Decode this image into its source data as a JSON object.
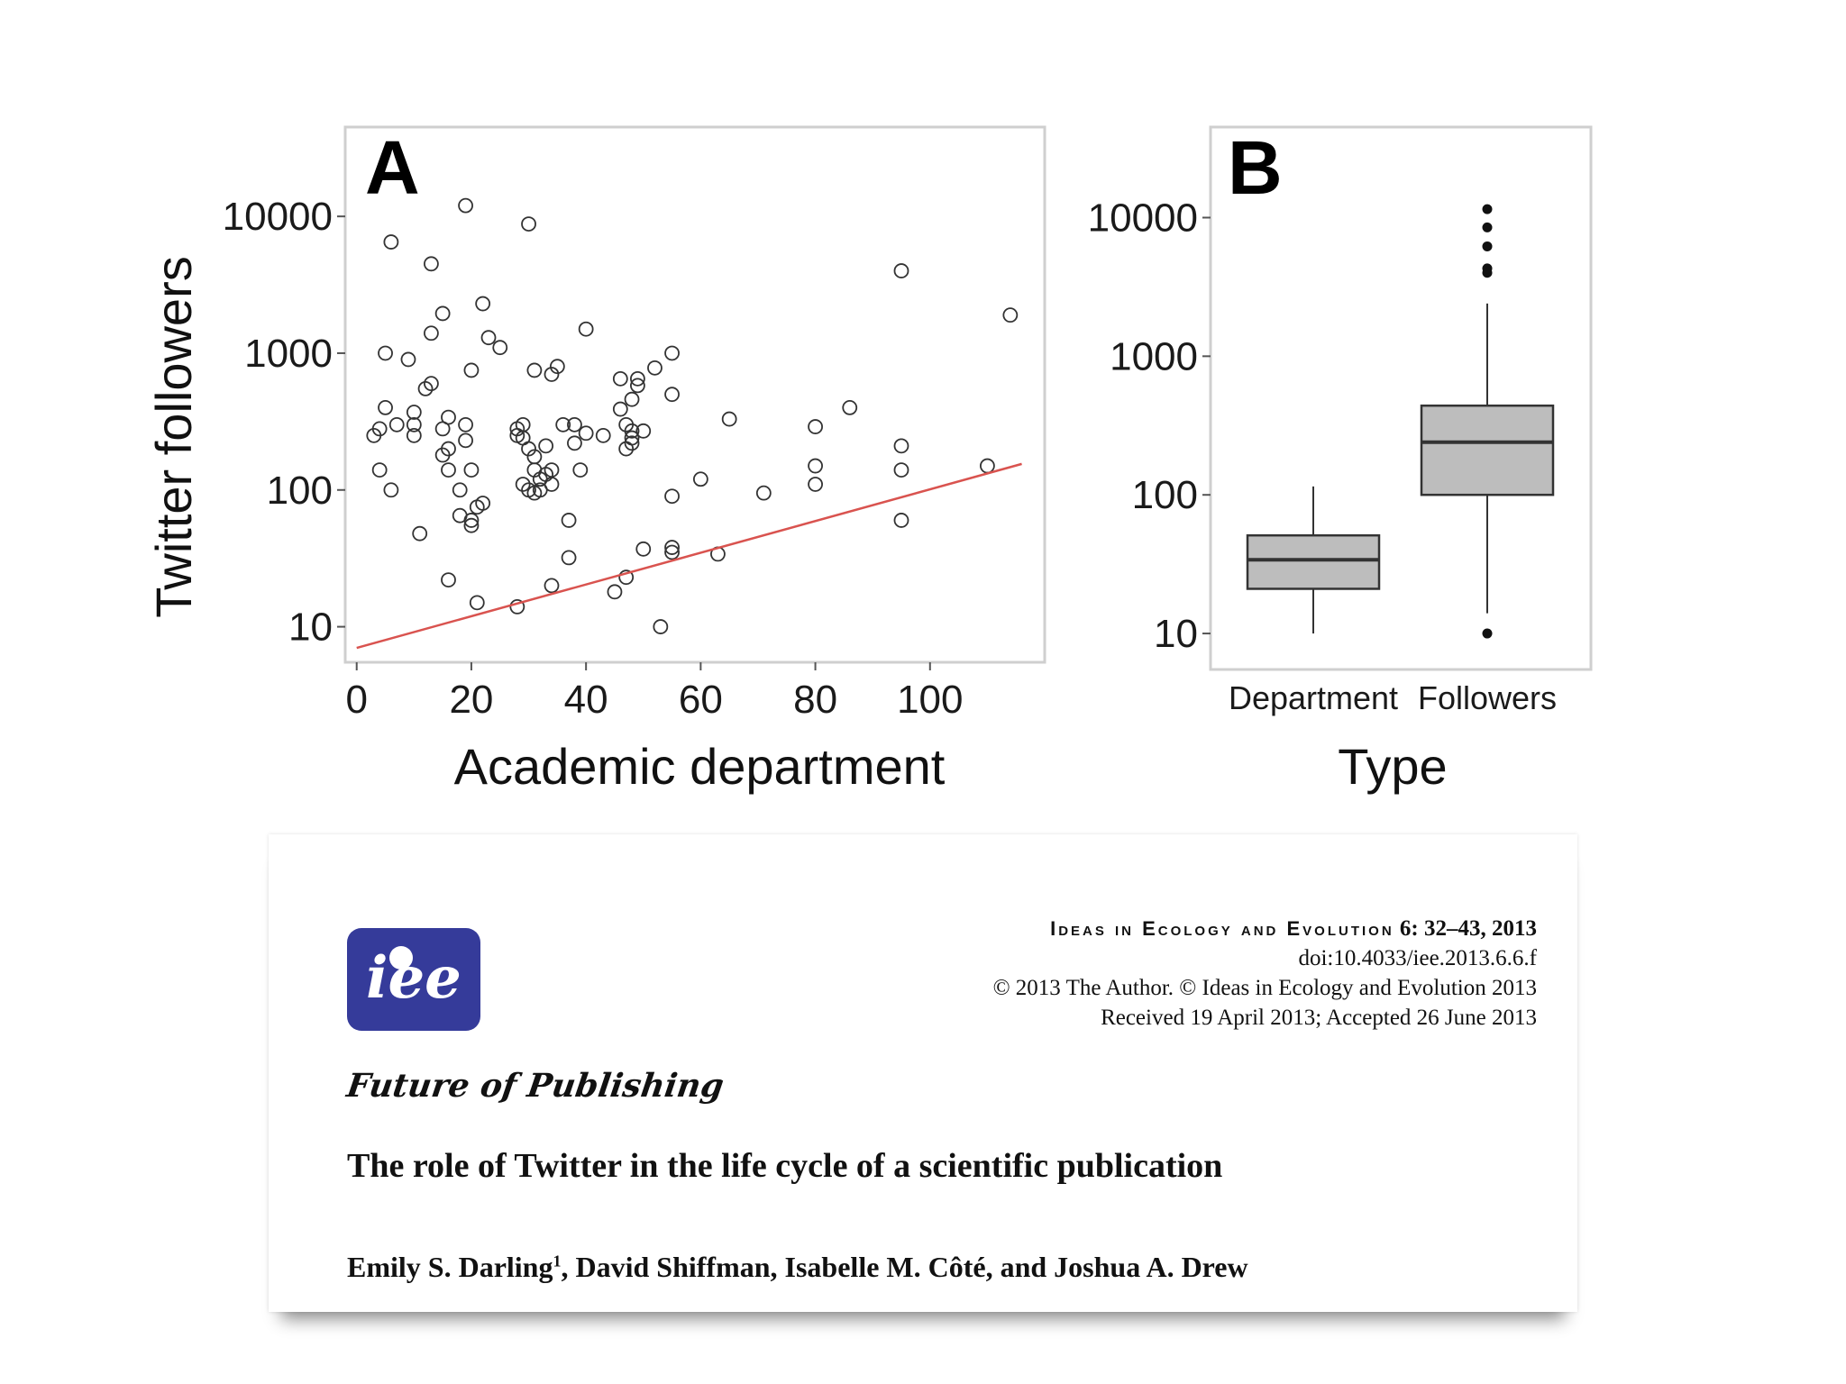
{
  "chart_data": [
    {
      "type": "scatter",
      "panel": "A",
      "xlabel": "Academic department",
      "ylabel": "Twitter followers",
      "xlim": [
        -2,
        120
      ],
      "ylim": [
        5.5,
        45000
      ],
      "yscale": "log",
      "x_ticks": [
        0,
        20,
        40,
        60,
        80,
        100
      ],
      "y_ticks": [
        10,
        100,
        1000,
        10000
      ],
      "grid": false,
      "points": [
        [
          19,
          12000
        ],
        [
          30,
          8800
        ],
        [
          6,
          6500
        ],
        [
          13,
          4500
        ],
        [
          95,
          4000
        ],
        [
          114,
          1900
        ],
        [
          15,
          1950
        ],
        [
          22,
          2300
        ],
        [
          40,
          1500
        ],
        [
          13,
          1400
        ],
        [
          23,
          1300
        ],
        [
          25,
          1100
        ],
        [
          5,
          1000
        ],
        [
          9,
          900
        ],
        [
          20,
          750
        ],
        [
          35,
          800
        ],
        [
          34,
          700
        ],
        [
          31,
          750
        ],
        [
          46,
          650
        ],
        [
          49,
          650
        ],
        [
          49,
          580
        ],
        [
          52,
          780
        ],
        [
          55,
          1000
        ],
        [
          13,
          600
        ],
        [
          12,
          550
        ],
        [
          5,
          400
        ],
        [
          10,
          370
        ],
        [
          16,
          340
        ],
        [
          19,
          300
        ],
        [
          10,
          300
        ],
        [
          10,
          250
        ],
        [
          7,
          300
        ],
        [
          4,
          280
        ],
        [
          3,
          250
        ],
        [
          15,
          280
        ],
        [
          19,
          230
        ],
        [
          16,
          200
        ],
        [
          16,
          140
        ],
        [
          18,
          100
        ],
        [
          20,
          140
        ],
        [
          15,
          180
        ],
        [
          6,
          100
        ],
        [
          4,
          140
        ],
        [
          28,
          250
        ],
        [
          28,
          280
        ],
        [
          29,
          300
        ],
        [
          29,
          240
        ],
        [
          30,
          200
        ],
        [
          31,
          175
        ],
        [
          31,
          140
        ],
        [
          32,
          120
        ],
        [
          33,
          130
        ],
        [
          34,
          140
        ],
        [
          34,
          110
        ],
        [
          32,
          100
        ],
        [
          31,
          95
        ],
        [
          29,
          110
        ],
        [
          30,
          100
        ],
        [
          33,
          210
        ],
        [
          36,
          300
        ],
        [
          38,
          220
        ],
        [
          38,
          300
        ],
        [
          40,
          260
        ],
        [
          43,
          250
        ],
        [
          39,
          140
        ],
        [
          47,
          300
        ],
        [
          48,
          270
        ],
        [
          48,
          240
        ],
        [
          48,
          220
        ],
        [
          47,
          200
        ],
        [
          46,
          390
        ],
        [
          50,
          270
        ],
        [
          48,
          460
        ],
        [
          55,
          500
        ],
        [
          65,
          330
        ],
        [
          60,
          120
        ],
        [
          55,
          90
        ],
        [
          71,
          95
        ],
        [
          80,
          290
        ],
        [
          80,
          150
        ],
        [
          80,
          110
        ],
        [
          86,
          400
        ],
        [
          95,
          210
        ],
        [
          95,
          140
        ],
        [
          95,
          60
        ],
        [
          110,
          150
        ],
        [
          21,
          75
        ],
        [
          20,
          60
        ],
        [
          20,
          55
        ],
        [
          18,
          65
        ],
        [
          22,
          80
        ],
        [
          37,
          60
        ],
        [
          11,
          48
        ],
        [
          16,
          22
        ],
        [
          21,
          15
        ],
        [
          28,
          14
        ],
        [
          34,
          20
        ],
        [
          37,
          32
        ],
        [
          45,
          18
        ],
        [
          47,
          23
        ],
        [
          50,
          37
        ],
        [
          55,
          35
        ],
        [
          55,
          38
        ],
        [
          63,
          34
        ],
        [
          53,
          10
        ]
      ],
      "trend_line": {
        "from": [
          0,
          7
        ],
        "to": [
          116,
          155
        ],
        "color": "#d9534f"
      },
      "marker_color": "#333333"
    },
    {
      "type": "box",
      "panel": "B",
      "xlabel": "Type",
      "categories": [
        "Department",
        "Followers"
      ],
      "ylim": [
        5.5,
        45000
      ],
      "yscale": "log",
      "y_ticks": [
        10,
        100,
        1000,
        10000
      ],
      "grid": false,
      "boxes": [
        {
          "whisker_low": 10,
          "q1": 21,
          "median": 34,
          "q3": 51,
          "whisker_high": 115,
          "outliers": []
        },
        {
          "whisker_low": 14,
          "q1": 100,
          "median": 240,
          "q3": 440,
          "whisker_high": 2400,
          "outliers": [
            10,
            4000,
            4300,
            6200,
            8500,
            11500
          ]
        }
      ],
      "box_color": "#bdbdbd"
    }
  ],
  "figure": {
    "panel_a_letter": "A",
    "panel_b_letter": "B",
    "xlabel_a": "Academic department",
    "ylabel_a": "Twitter followers",
    "xlabel_b": "Type",
    "cat1": "Department",
    "cat2": "Followers"
  },
  "paper": {
    "logo_text": "iee",
    "journal": "Ideas in Ecology and Evolution",
    "volume": "6: 32–43, 2013",
    "doi": "doi:10.4033/iee.2013.6.6.f",
    "copyright": "© 2013 The Author.  © Ideas in Ecology and Evolution 2013",
    "dates": "Received 19 April 2013; Accepted 26 June 2013",
    "section": "Future of Publishing",
    "title": "The role of Twitter in the life cycle of a scientific publication",
    "author_first": "Emily S. Darling",
    "author_first_sup": "1",
    "authors_rest": ", David Shiffman, Isabelle M. Côté, and Joshua A. Drew"
  }
}
